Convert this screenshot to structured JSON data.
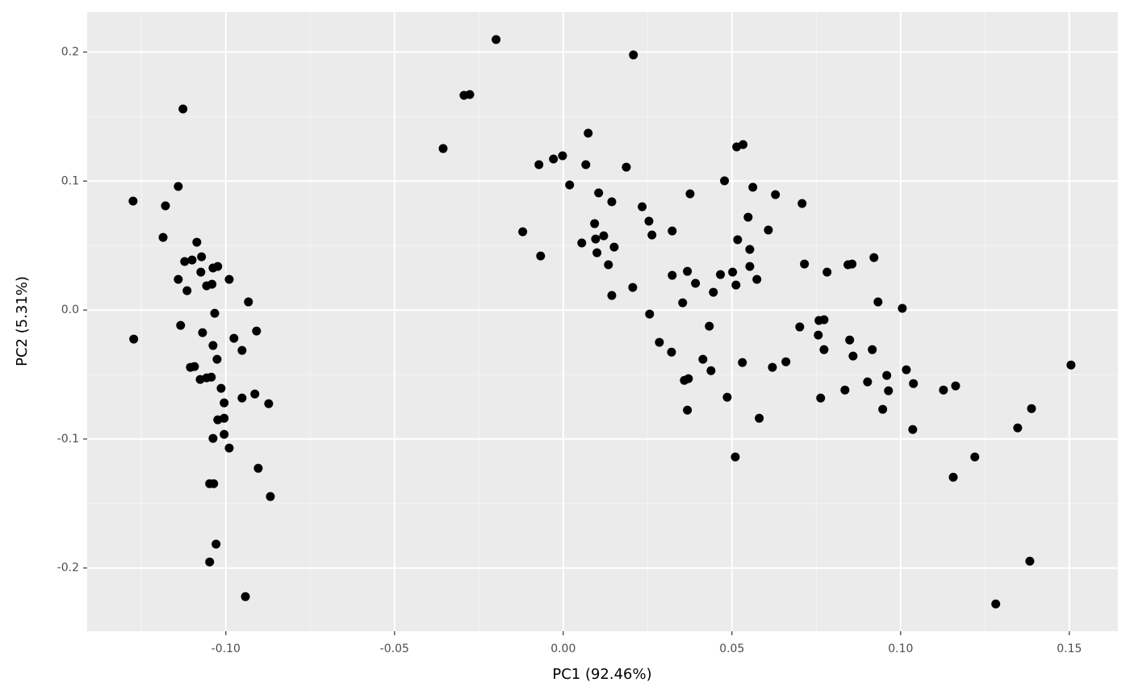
{
  "chart_data": {
    "type": "scatter",
    "xlabel": "PC1 (92.46%)",
    "ylabel": "PC2 (5.31%)",
    "color": "#000000",
    "background": "#ebebeb",
    "grid": true,
    "xlim": [
      -0.1411,
      0.1644
    ],
    "ylim": [
      -0.249,
      0.231
    ],
    "xticks": [
      {
        "value": -0.1,
        "label": "-0.10"
      },
      -0.05,
      {
        "value": 0,
        "label": "0.00"
      },
      0.05,
      {
        "value": 0.1,
        "label": "0.10"
      },
      0.15
    ],
    "yticks": [
      -0.2,
      -0.1,
      {
        "value": 0,
        "label": "0.0"
      },
      0.1,
      0.2
    ],
    "x": [
      -0.1275,
      -0.1273,
      -0.1127,
      -0.1141,
      -0.1179,
      -0.1186,
      -0.1086,
      -0.1122,
      -0.11,
      -0.1072,
      -0.1141,
      -0.1074,
      -0.1115,
      -0.1057,
      -0.1041,
      -0.1038,
      -0.1024,
      -0.099,
      -0.1033,
      -0.0933,
      -0.1134,
      -0.1069,
      -0.0976,
      -0.0909,
      -0.1038,
      -0.1026,
      -0.0952,
      -0.1105,
      -0.1093,
      -0.1076,
      -0.1057,
      -0.1043,
      -0.1014,
      -0.1005,
      -0.0952,
      -0.0914,
      -0.0873,
      -0.1005,
      -0.1024,
      -0.1038,
      -0.1005,
      -0.099,
      -0.0904,
      -0.1048,
      -0.1036,
      -0.0868,
      -0.1029,
      -0.1048,
      -0.0942,
      -0.0199,
      0.0208,
      -0.0294,
      -0.0277,
      -0.0356,
      0.0074,
      -0.0029,
      -0.0002,
      -0.0072,
      0.0067,
      0.0187,
      0.0019,
      0.0105,
      0.0144,
      0.0234,
      0.0254,
      0.0376,
      0.0514,
      0.0533,
      0.0478,
      0.0562,
      0.0629,
      0.0708,
      -0.012,
      -0.0067,
      0.0055,
      0.0093,
      0.0096,
      0.012,
      0.0151,
      0.01,
      0.0134,
      0.0263,
      0.0323,
      0.0548,
      0.0608,
      0.0517,
      0.0553,
      0.0553,
      0.0715,
      0.0844,
      0.0856,
      0.0921,
      0.0782,
      0.0368,
      0.0323,
      0.0392,
      0.0466,
      0.0502,
      0.0512,
      0.0574,
      0.0206,
      0.0144,
      0.0354,
      0.0445,
      0.0933,
      0.1005,
      0.0256,
      0.0758,
      0.0773,
      0.0701,
      0.0433,
      0.0285,
      0.0756,
      0.0849,
      0.0773,
      0.0321,
      0.0916,
      0.0859,
      0.0414,
      0.0531,
      0.066,
      0.062,
      0.0438,
      0.1017,
      0.0959,
      0.1505,
      0.0371,
      0.0359,
      0.0902,
      0.1038,
      0.1163,
      0.1127,
      0.0835,
      0.0964,
      0.0486,
      0.0763,
      0.0368,
      0.0581,
      0.0947,
      0.1036,
      0.1347,
      0.1388,
      0.1156,
      0.122,
      0.051,
      0.1383,
      0.1282
    ],
    "y": [
      0.0845,
      -0.0225,
      0.1559,
      0.0958,
      0.0808,
      0.0563,
      0.0526,
      0.0376,
      0.0388,
      0.0413,
      0.0238,
      0.0294,
      0.015,
      0.0188,
      0.02,
      0.0326,
      0.0338,
      0.0238,
      -0.0025,
      0.0063,
      -0.0119,
      -0.0175,
      -0.0219,
      -0.0163,
      -0.0275,
      -0.0382,
      -0.0313,
      -0.0444,
      -0.0438,
      -0.0538,
      -0.0526,
      -0.052,
      -0.0607,
      -0.072,
      -0.0682,
      -0.0651,
      -0.0726,
      -0.0839,
      -0.0851,
      -0.0995,
      -0.0964,
      -0.107,
      -0.1227,
      -0.1346,
      -0.1346,
      -0.1446,
      -0.1815,
      -0.1953,
      -0.2222,
      0.2097,
      0.1978,
      0.1665,
      0.1671,
      0.1252,
      0.1371,
      0.1171,
      0.1196,
      0.1127,
      0.1127,
      0.1108,
      0.097,
      0.0908,
      0.0839,
      0.0801,
      0.0689,
      0.0901,
      0.1265,
      0.1283,
      0.1002,
      0.0952,
      0.0895,
      0.0826,
      0.0607,
      0.0419,
      0.052,
      0.067,
      0.0551,
      0.0576,
      0.0488,
      0.0444,
      0.0351,
      0.0582,
      0.0613,
      0.072,
      0.062,
      0.0545,
      0.047,
      0.0338,
      0.0357,
      0.0351,
      0.0357,
      0.0407,
      0.0294,
      0.03,
      0.0269,
      0.0207,
      0.0275,
      0.0294,
      0.0194,
      0.0238,
      0.0175,
      0.0113,
      0.0056,
      0.0138,
      0.0063,
      0.0013,
      -0.0031,
      -0.0081,
      -0.0075,
      -0.0131,
      -0.0125,
      -0.025,
      -0.0194,
      -0.0232,
      -0.0307,
      -0.0326,
      -0.0307,
      -0.0357,
      -0.0382,
      -0.0407,
      -0.0401,
      -0.0444,
      -0.047,
      -0.0463,
      -0.0507,
      -0.0426,
      -0.0532,
      -0.0545,
      -0.0557,
      -0.057,
      -0.0588,
      -0.062,
      -0.062,
      -0.0626,
      -0.0676,
      -0.0682,
      -0.0776,
      -0.0839,
      -0.077,
      -0.0926,
      -0.0914,
      -0.0764,
      -0.1296,
      -0.1139,
      -0.1139,
      -0.1947,
      -0.2279
    ]
  }
}
